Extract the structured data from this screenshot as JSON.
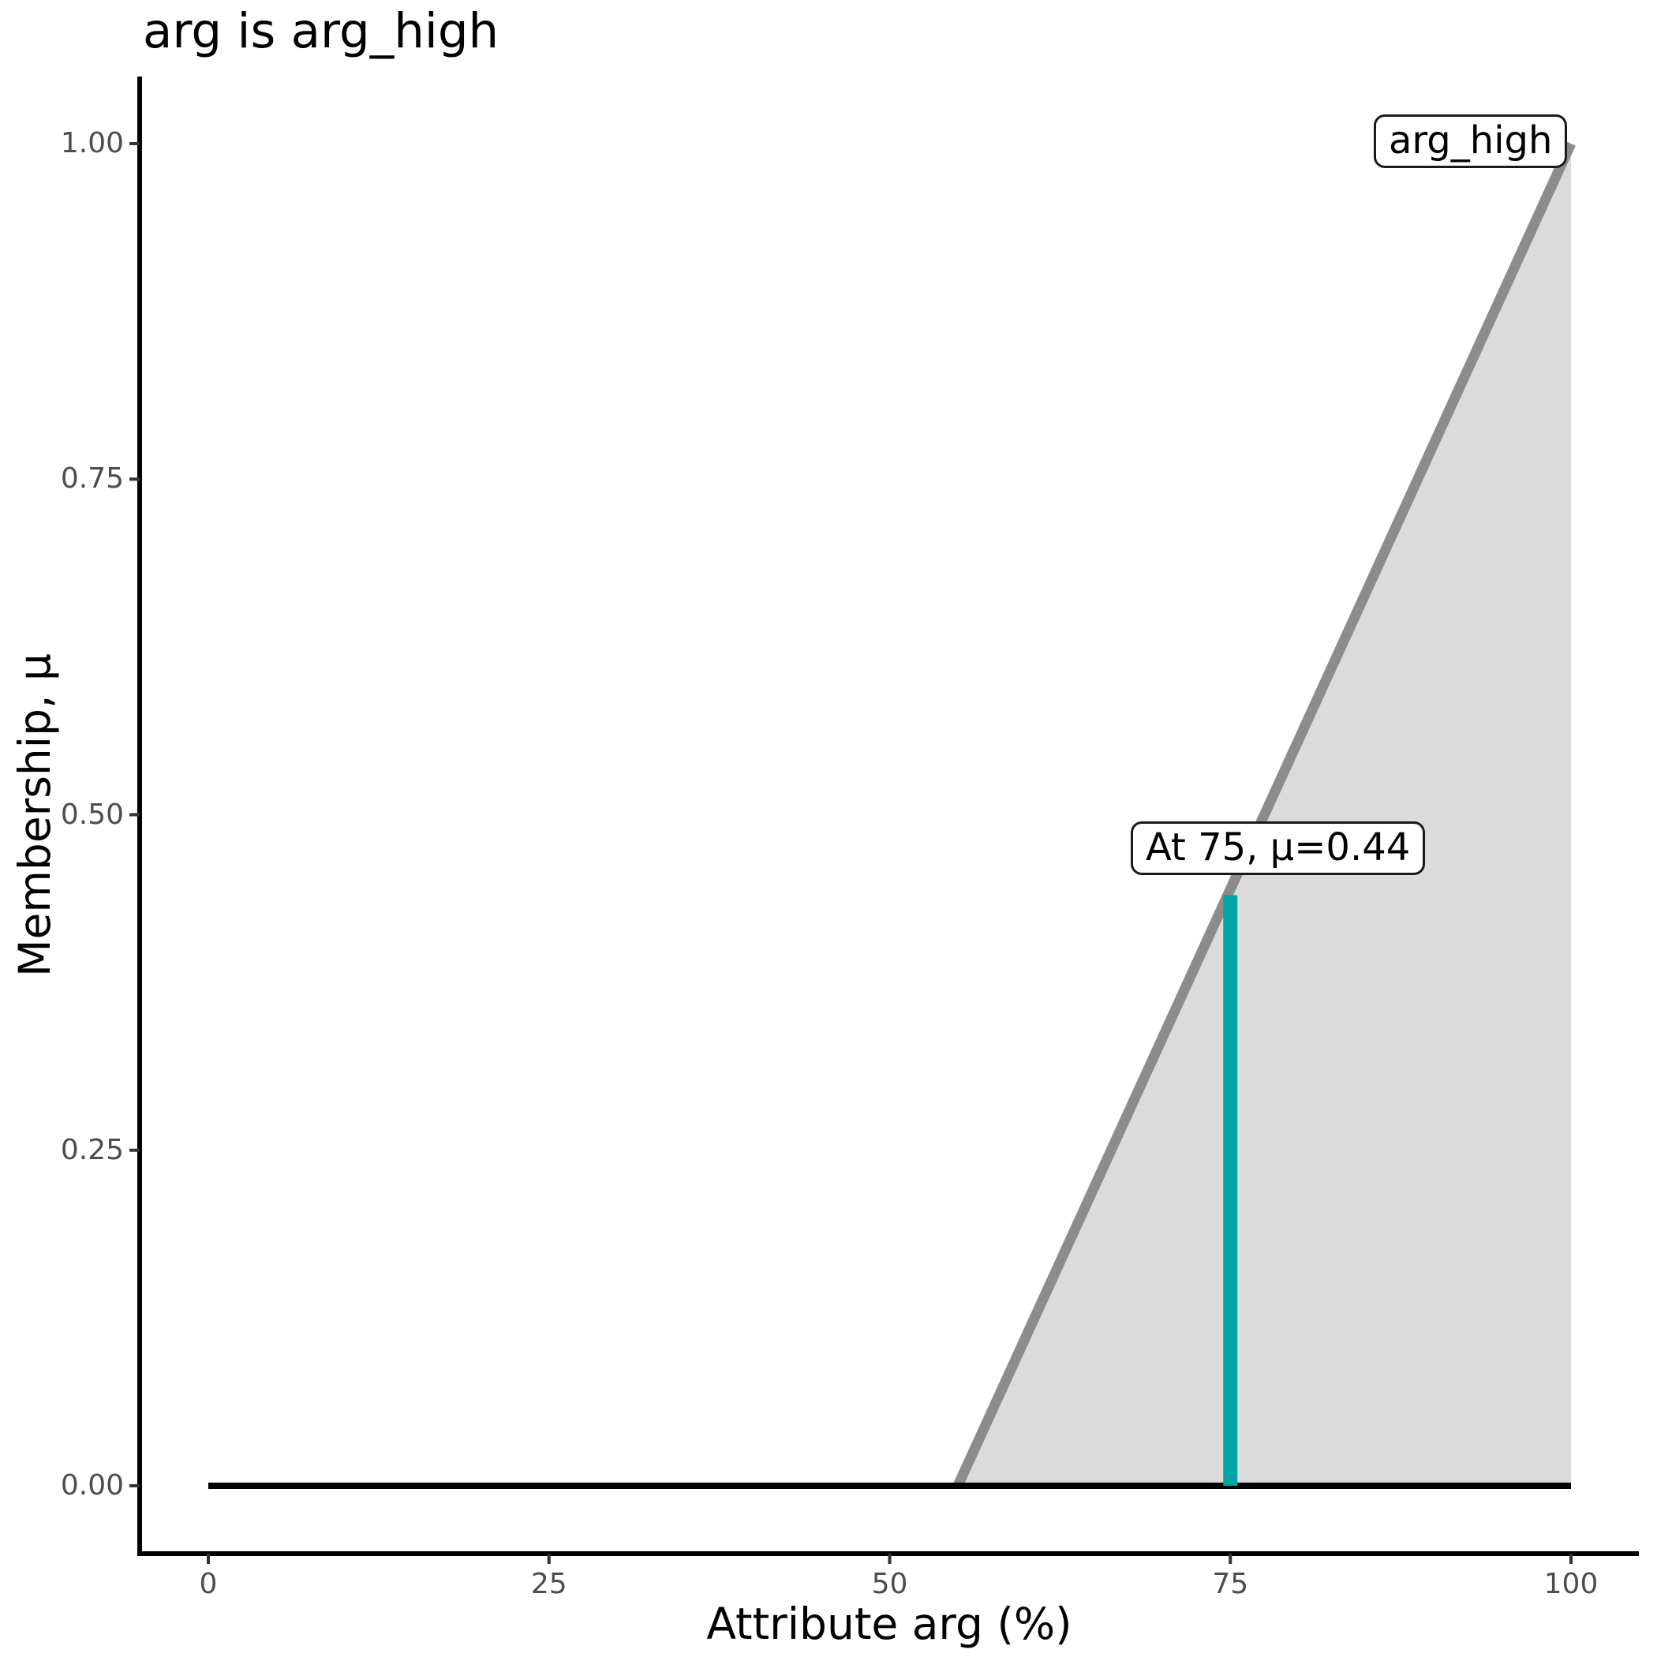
{
  "chart_data": {
    "type": "area",
    "title": "arg is arg_high",
    "xlabel": "Attribute arg (%)",
    "ylabel": "Membership, μ",
    "xlim": [
      0,
      100
    ],
    "ylim": [
      0,
      1
    ],
    "grid": false,
    "legend": "none",
    "x_ticks": {
      "values": [
        0,
        25,
        50,
        75,
        100
      ],
      "labels": [
        "0",
        "25",
        "50",
        "75",
        "100"
      ]
    },
    "y_ticks": {
      "values": [
        0,
        0.25,
        0.5,
        0.75,
        1
      ],
      "labels": [
        "0.00",
        "0.25",
        "0.50",
        "0.75",
        "1.00"
      ]
    },
    "series": [
      {
        "name": "arg_high-membership-ramp",
        "x": [
          55,
          100
        ],
        "y": [
          0,
          1
        ],
        "line_color": "#8C8C8C",
        "line_width": 13,
        "fill_color": "#DBDBDB"
      },
      {
        "name": "zero-membership-baseline",
        "x": [
          0,
          100
        ],
        "y": [
          0,
          0
        ],
        "line_color": "#000000",
        "line_width": 8
      },
      {
        "name": "evaluation-line-at-75",
        "x": [
          75,
          75
        ],
        "y": [
          0,
          0.44
        ],
        "line_color": "#00A5A6",
        "line_width": 18
      }
    ],
    "annotations": [
      {
        "text": "At 75, μ=0.44",
        "x": 75,
        "mu": 0.44
      },
      {
        "text": "arg_high",
        "x": 93,
        "mu": 0.97
      }
    ],
    "theme": {
      "background": "#FFFFFF",
      "axis_line_color": "#000000",
      "tick_mark_color": "#333333",
      "tick_label_color": "#4D4D4D",
      "title_color": "#000000",
      "accent_teal": "#00A5A6",
      "ramp_gray": "#8C8C8C",
      "fill_gray": "#DBDBDB"
    }
  }
}
